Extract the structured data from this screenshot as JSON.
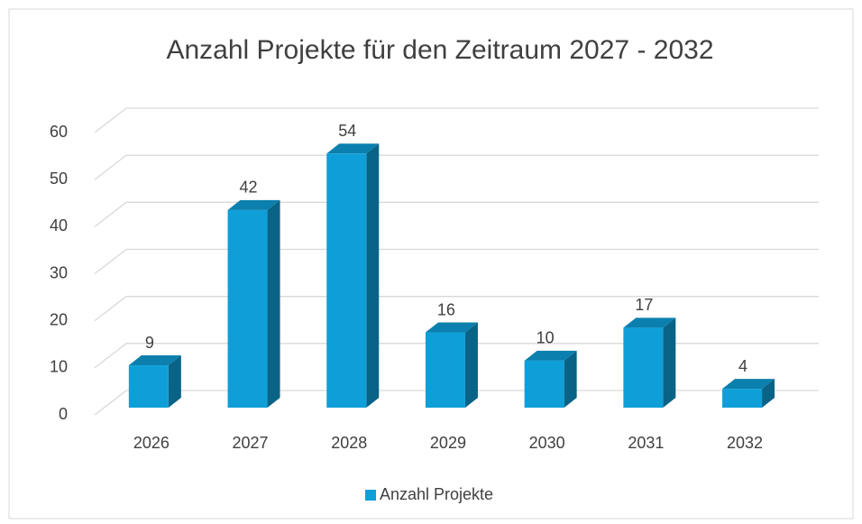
{
  "chart_data": {
    "type": "bar",
    "title": "Anzahl Projekte für den Zeitraum 2027 - 2032",
    "categories": [
      "2026",
      "2027",
      "2028",
      "2029",
      "2030",
      "2031",
      "2032"
    ],
    "series": [
      {
        "name": "Anzahl Projekte",
        "color": "#0e9fd8",
        "values": [
          9,
          42,
          54,
          16,
          10,
          17,
          4
        ]
      }
    ],
    "ylim": [
      0,
      60
    ],
    "yticks": [
      0,
      10,
      20,
      30,
      40,
      50,
      60
    ],
    "grid": true,
    "legend": "bottom"
  }
}
